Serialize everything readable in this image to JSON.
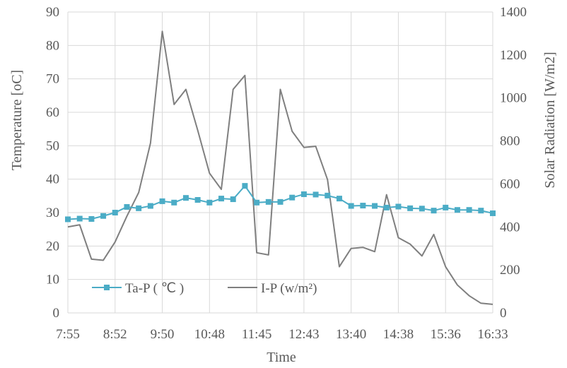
{
  "chart_data": {
    "type": "line",
    "xlabel": "Time",
    "ylabel": "Temperature [oC]",
    "y2label": "Solar Radiation [W/m2]",
    "x_tick_labels": [
      "7:55",
      "8:52",
      "9:50",
      "10:48",
      "11:45",
      "12:43",
      "13:40",
      "14:38",
      "15:36",
      "16:33"
    ],
    "ylim": [
      0,
      90
    ],
    "yticks": [
      0,
      10,
      20,
      30,
      40,
      50,
      60,
      70,
      80,
      90
    ],
    "y2lim": [
      0,
      1400
    ],
    "y2ticks": [
      0,
      200,
      400,
      600,
      800,
      1000,
      1200,
      1400
    ],
    "grid": true,
    "legend_placement": "bottom-left",
    "series": [
      {
        "name": "Ta-P ( ℃ )",
        "axis": "left",
        "color": "#4bacc6",
        "marker": "square",
        "values": [
          28,
          28.2,
          28.1,
          29,
          30,
          31.7,
          31.3,
          32,
          33.4,
          33,
          34.4,
          33.8,
          33,
          34.2,
          34,
          38,
          33,
          33.2,
          33.2,
          34.5,
          35.5,
          35.4,
          35.1,
          34.2,
          32,
          32.1,
          32,
          31.5,
          31.8,
          31.3,
          31.2,
          30.6,
          31.5,
          30.8,
          30.8,
          30.6,
          29.8
        ]
      },
      {
        "name": "I-P (w/m²)",
        "axis": "right",
        "color": "#7f7f7f",
        "values": [
          400,
          410,
          250,
          245,
          330,
          450,
          560,
          790,
          1310,
          970,
          1040,
          850,
          650,
          575,
          1040,
          1105,
          280,
          270,
          1040,
          845,
          770,
          775,
          620,
          215,
          300,
          305,
          285,
          550,
          350,
          320,
          265,
          365,
          215,
          130,
          80,
          45,
          40
        ]
      }
    ]
  }
}
